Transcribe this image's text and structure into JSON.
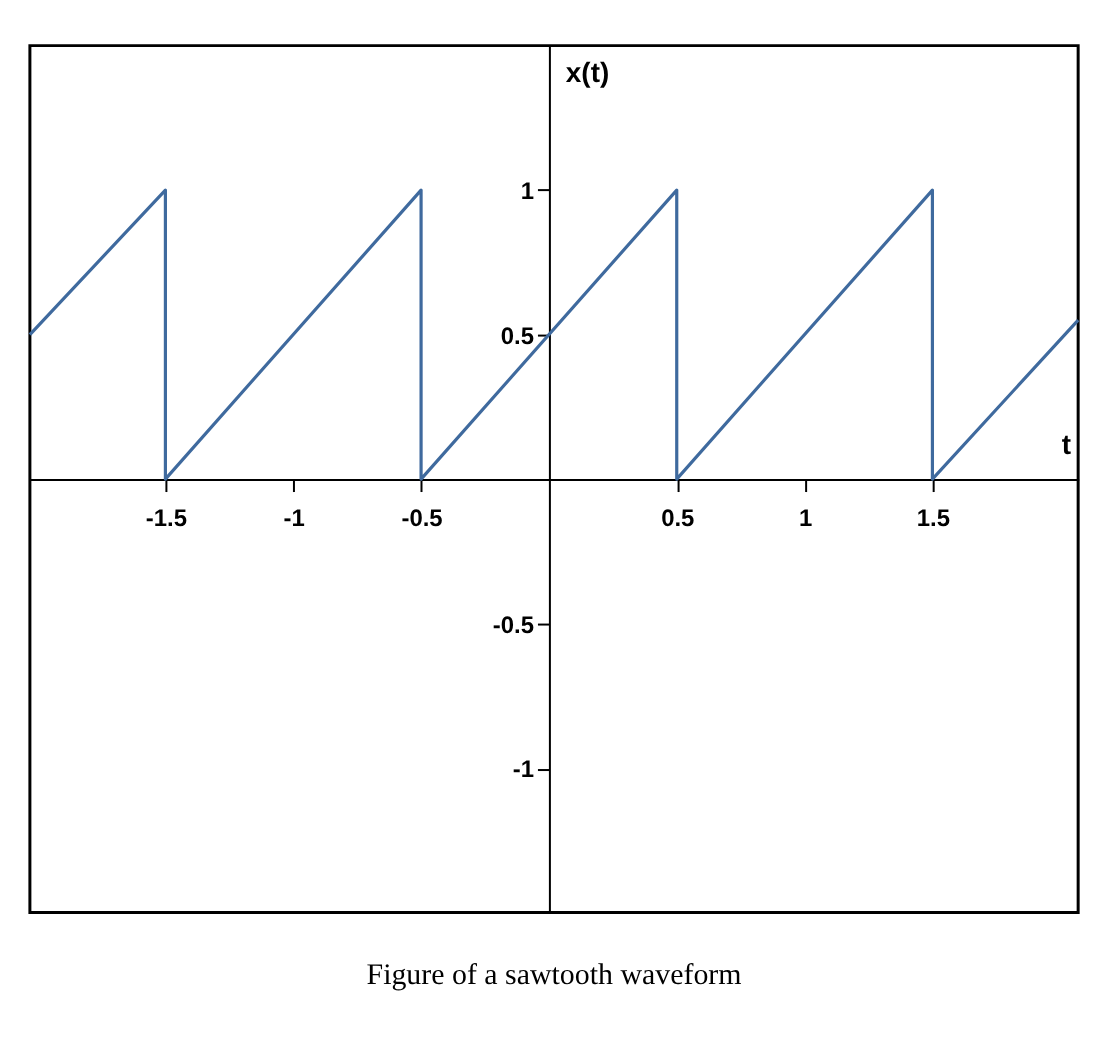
{
  "chart_data": {
    "type": "line",
    "xlabel": "t",
    "ylabel": "x(t)",
    "x": [
      -2.03,
      -1.5,
      -1.5,
      -0.5,
      -0.5,
      0.5,
      0.5,
      1.5,
      1.5,
      2.07
    ],
    "series": [
      {
        "color": "#3f6a9e",
        "values": [
          0.5,
          1,
          0,
          1,
          0,
          1,
          0,
          1,
          0,
          0.55
        ]
      }
    ],
    "xlim": [
      -2.03,
      2.07
    ],
    "ylim": [
      -1.5,
      1.5
    ],
    "xticks": [
      -1.5,
      -1,
      -0.5,
      0.5,
      1,
      1.5
    ],
    "yticks": [
      -1,
      -0.5,
      0.5,
      1
    ],
    "grid": false,
    "legend": false,
    "marker": "none",
    "line_style": "solid",
    "annotations": [
      "Figure of a sawtooth waveform"
    ]
  }
}
